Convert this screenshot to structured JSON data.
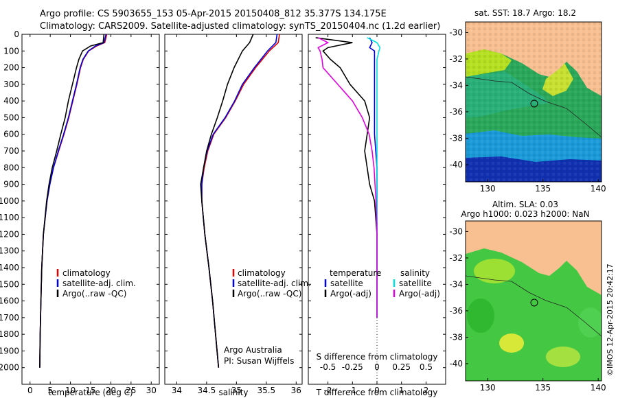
{
  "header": {
    "line1": "Argo profile: CS 5903655_153 05-Apr-2015 20150408_812 35.377S 134.175E",
    "line2": "Climatology: CARS2009. Satellite-adjusted climatology: synTS_20150404.nc (1.2d earlier)"
  },
  "colors": {
    "climatology": "#e00000",
    "satellite": "#0000e0",
    "argo": "#000000",
    "sat_salt": "#00e0e0",
    "argo_salt": "#e000e0",
    "land": "#f8c090"
  },
  "depth_axis": {
    "ylim": [
      0,
      2100
    ],
    "ticks": [
      0,
      100,
      200,
      300,
      400,
      500,
      600,
      700,
      800,
      900,
      1000,
      1100,
      1200,
      1300,
      1400,
      1500,
      1600,
      1700,
      1800,
      1900,
      2000
    ]
  },
  "temp_panel": {
    "xlabel": "temperature (deg C)",
    "xlim": [
      -2,
      32
    ],
    "xticks": [
      0,
      5,
      10,
      15,
      20,
      25,
      30
    ],
    "legend": [
      "climatology",
      "satellite-adj. clim.",
      "Argo(..raw -QC)"
    ]
  },
  "salt_panel": {
    "xlabel": "salinity",
    "xlim": [
      33.8,
      36.1
    ],
    "xticks": [
      34,
      34.5,
      35,
      35.5,
      36
    ],
    "legend": [
      "climatology",
      "satellite-adj. clim.",
      "Argo(..raw -QC)"
    ],
    "note1": "Argo Australia",
    "note2": "PI: Susan Wijffels"
  },
  "diff_panel": {
    "xlabel": "T difference from climatology",
    "top_label": "S difference from climatology",
    "t_xlim": [
      -2.8,
      2.8
    ],
    "t_ticks": [
      -2,
      -1,
      0,
      1,
      2
    ],
    "s_ticks": [
      -0.5,
      -0.25,
      0,
      0.25,
      0.5
    ],
    "legend_t_head": "temperature",
    "legend_s_head": "salinity",
    "legend_sat": "satellite",
    "legend_argo": "Argo(-adj)"
  },
  "map_top": {
    "title": "sat. SST: 18.7  Argo: 18.2",
    "xticks": [
      130,
      135,
      140
    ],
    "yticks": [
      -30,
      -32,
      -34,
      -36,
      -38,
      -40
    ],
    "xlim": [
      128,
      140.3
    ],
    "ylim": [
      -41.3,
      -29.2
    ]
  },
  "map_bottom": {
    "title1": "Altim. SLA: 0.03",
    "title2": "Argo h1000: 0.023  h2000: NaN",
    "xticks": [
      130,
      135,
      140
    ],
    "yticks": [
      -30,
      -32,
      -34,
      -36,
      -38,
      -40
    ],
    "xlim": [
      128,
      140.3
    ],
    "ylim": [
      -41.3,
      -29.2
    ]
  },
  "watermark": "©IMOS 12-Apr-2015 20:42:17",
  "chart_data": [
    {
      "type": "line",
      "name": "temperature profile",
      "x_label": "temperature (deg C)",
      "y_label": "depth",
      "depth": [
        0,
        50,
        70,
        100,
        150,
        200,
        300,
        400,
        500,
        600,
        700,
        800,
        900,
        1000,
        1200,
        1400,
        1600,
        1800,
        2000
      ],
      "series": [
        {
          "name": "climatology",
          "values": [
            19.0,
            18.5,
            16.5,
            14.5,
            13.2,
            12.5,
            11.6,
            10.6,
            9.6,
            8.4,
            7.1,
            5.8,
            4.9,
            4.2,
            3.3,
            2.9,
            2.7,
            2.5,
            2.4
          ]
        },
        {
          "name": "satellite-adj. clim.",
          "values": [
            18.8,
            18.3,
            16.2,
            14.4,
            13.1,
            12.4,
            11.5,
            10.5,
            9.5,
            8.3,
            7.0,
            5.8,
            4.9,
            4.2,
            3.3,
            2.9,
            2.7,
            2.5,
            2.4
          ]
        },
        {
          "name": "Argo(..raw -QC)",
          "values": [
            18.3,
            18.1,
            15.0,
            13.0,
            12.1,
            11.5,
            10.5,
            9.5,
            8.7,
            7.6,
            6.6,
            5.5,
            4.7,
            4.1,
            3.3,
            2.9,
            2.7,
            2.5,
            2.4
          ]
        }
      ]
    },
    {
      "type": "line",
      "name": "salinity profile",
      "x_label": "salinity",
      "y_label": "depth",
      "depth": [
        0,
        50,
        100,
        200,
        300,
        400,
        500,
        600,
        700,
        800,
        900,
        1000,
        1200,
        1400,
        1600,
        1800,
        2000
      ],
      "series": [
        {
          "name": "climatology",
          "values": [
            35.72,
            35.7,
            35.55,
            35.32,
            35.12,
            34.98,
            34.82,
            34.62,
            34.52,
            34.46,
            34.42,
            34.42,
            34.47,
            34.54,
            34.6,
            34.65,
            34.7
          ]
        },
        {
          "name": "satellite-adj. clim.",
          "values": [
            35.68,
            35.66,
            35.52,
            35.3,
            35.1,
            34.97,
            34.81,
            34.61,
            34.51,
            34.45,
            34.42,
            34.42,
            34.47,
            34.54,
            34.6,
            34.65,
            34.7
          ]
        },
        {
          "name": "Argo(..raw -QC)",
          "values": [
            35.28,
            35.22,
            35.1,
            34.96,
            34.85,
            34.77,
            34.68,
            34.58,
            34.5,
            34.45,
            34.4,
            34.42,
            34.47,
            34.54,
            34.6,
            34.65,
            34.7
          ]
        }
      ]
    },
    {
      "type": "line",
      "name": "difference from climatology",
      "x_label": "T difference from climatology",
      "y_label": "depth",
      "depth": [
        20,
        50,
        80,
        100,
        150,
        200,
        300,
        400,
        500,
        600,
        700,
        800,
        900,
        1000,
        1200,
        1400,
        1600,
        1700
      ],
      "series": [
        {
          "name": "temperature satellite",
          "values": [
            -0.3,
            -0.2,
            -0.3,
            -0.1,
            -0.1,
            -0.1,
            -0.1,
            -0.1,
            -0.1,
            -0.1,
            -0.05,
            0,
            0,
            0,
            0,
            0,
            0,
            0
          ]
        },
        {
          "name": "temperature Argo(-adj)",
          "values": [
            -2.5,
            -1.0,
            -2.0,
            -2.2,
            -1.9,
            -1.5,
            -1.1,
            -0.5,
            -0.3,
            -0.4,
            -0.5,
            -0.4,
            -0.3,
            -0.1,
            0,
            0,
            0,
            0
          ]
        },
        {
          "name": "salinity satellite",
          "values": [
            -0.1,
            0,
            0.03,
            0.02,
            0,
            0,
            0,
            0,
            0,
            0,
            0,
            0,
            0,
            0,
            0,
            0,
            0,
            0
          ]
        },
        {
          "name": "salinity Argo(-adj)",
          "values": [
            -0.6,
            -0.5,
            -0.6,
            -0.58,
            -0.56,
            -0.55,
            -0.4,
            -0.25,
            -0.15,
            -0.08,
            -0.05,
            -0.03,
            -0.02,
            -0.01,
            0,
            0,
            0,
            0
          ]
        }
      ]
    }
  ]
}
